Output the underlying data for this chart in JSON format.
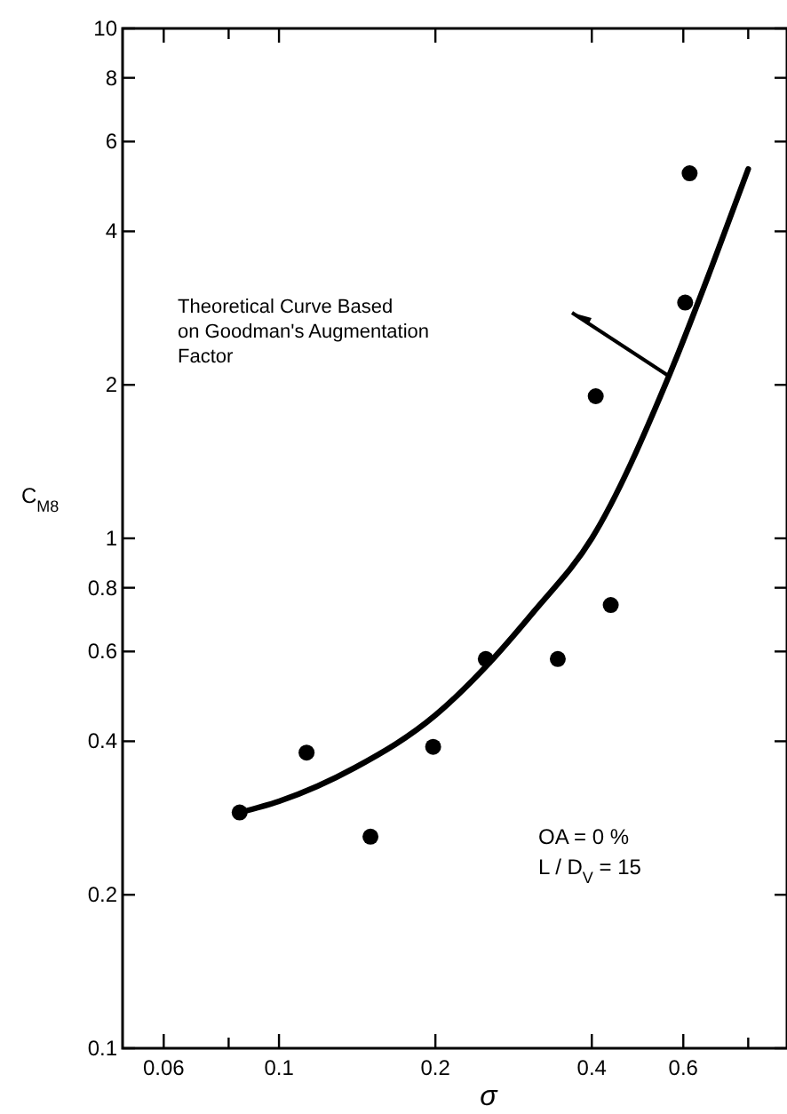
{
  "chart_data": {
    "type": "scatter",
    "xlabel": "σ",
    "ylabel": "C$_{M8}$",
    "log": "xy",
    "grid": false,
    "xlim": [
      0.05,
      0.95
    ],
    "ylim": [
      0.1,
      10
    ],
    "xticks": [
      0.06,
      {
        "value": 0.08,
        "label": null
      },
      0.1,
      0.2,
      0.4,
      0.6,
      {
        "value": 0.8,
        "label": null
      }
    ],
    "yticks": [
      0.1,
      0.2,
      0.4,
      0.6,
      0.8,
      1,
      2,
      4,
      6,
      8,
      10
    ],
    "series": [
      {
        "color": "#000000",
        "marker": "circle",
        "x": [
          0.084,
          0.113,
          0.15,
          0.198,
          0.25,
          0.344,
          0.435,
          0.407,
          0.605,
          0.617
        ],
        "values": [
          0.29,
          0.38,
          0.26,
          0.39,
          0.58,
          0.58,
          0.74,
          1.9,
          2.9,
          5.2
        ]
      },
      {
        "type": "line",
        "color": "#000000",
        "marker": "none",
        "line_style": "solid",
        "x": [
          0.084,
          0.1,
          0.14,
          0.2,
          0.25,
          0.31,
          0.4,
          0.565,
          0.68,
          0.8
        ],
        "values": [
          0.29,
          0.305,
          0.355,
          0.45,
          0.56,
          0.72,
          1.0,
          2.1,
          3.4,
          5.3
        ]
      }
    ],
    "annotations": [
      "Theoretical Curve Based\non Goodman's Augmentation\nFactor",
      "OA = 0 %",
      "L / D$_{V}$ = 15"
    ]
  }
}
